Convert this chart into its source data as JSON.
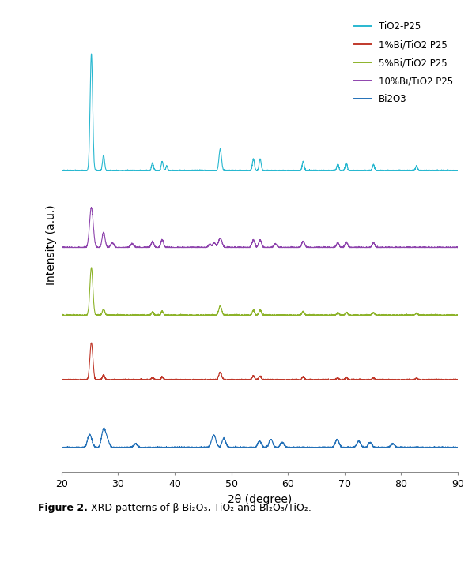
{
  "xlabel": "2θ (degree)",
  "ylabel": "Intensity (a.u.)",
  "xlim": [
    20,
    90
  ],
  "ylim": [
    -0.3,
    14.5
  ],
  "xticks": [
    20,
    30,
    40,
    50,
    60,
    70,
    80,
    90
  ],
  "background_color": "#ffffff",
  "legend_labels": [
    "TiO2-P25",
    "1%Bi/TiO2 P25",
    "5%Bi/TiO2 P25",
    "10%Bi/TiO2 P25",
    "Bi2O3"
  ],
  "colors": {
    "TiO2_P25": "#29b8d0",
    "Bi1": "#c0392b",
    "Bi5": "#8db32a",
    "Bi10": "#8e44ad",
    "Bi2O3": "#2471b8"
  },
  "offsets": {
    "TiO2_P25": 9.5,
    "Bi10": 7.0,
    "Bi5": 4.8,
    "Bi1": 2.7,
    "Bi2O3": 0.5
  },
  "tio2_peaks": [
    25.3,
    27.45,
    36.1,
    37.8,
    38.6,
    48.05,
    53.9,
    55.1,
    62.7,
    68.8,
    70.3,
    75.1,
    82.7
  ],
  "tio2_widths": [
    0.22,
    0.18,
    0.18,
    0.18,
    0.15,
    0.22,
    0.18,
    0.18,
    0.18,
    0.18,
    0.18,
    0.18,
    0.18
  ],
  "tio2_heights": [
    3.8,
    0.5,
    0.25,
    0.3,
    0.15,
    0.7,
    0.38,
    0.38,
    0.3,
    0.2,
    0.25,
    0.2,
    0.15
  ],
  "bi1_peaks": [
    25.3,
    27.45,
    36.1,
    37.8,
    48.05,
    53.9,
    55.1,
    62.7,
    68.8,
    70.3,
    75.1,
    82.7
  ],
  "bi1_widths": [
    0.26,
    0.21,
    0.19,
    0.19,
    0.26,
    0.21,
    0.21,
    0.21,
    0.21,
    0.21,
    0.21,
    0.21
  ],
  "bi1_heights": [
    1.2,
    0.16,
    0.08,
    0.1,
    0.24,
    0.13,
    0.13,
    0.1,
    0.06,
    0.08,
    0.06,
    0.05
  ],
  "bi5_peaks": [
    25.3,
    27.45,
    36.1,
    37.8,
    48.05,
    53.9,
    55.1,
    62.7,
    68.8,
    70.3,
    75.1,
    82.7
  ],
  "bi5_widths": [
    0.26,
    0.21,
    0.19,
    0.19,
    0.26,
    0.21,
    0.21,
    0.21,
    0.21,
    0.21,
    0.21,
    0.21
  ],
  "bi5_heights": [
    1.55,
    0.2,
    0.1,
    0.13,
    0.3,
    0.16,
    0.16,
    0.12,
    0.08,
    0.1,
    0.08,
    0.06
  ],
  "bi10_peaks": [
    25.3,
    27.45,
    29.0,
    32.5,
    36.1,
    37.8,
    46.2,
    47.0,
    48.05,
    53.9,
    55.1,
    57.8,
    62.7,
    68.8,
    70.3,
    75.1
  ],
  "bi10_widths": [
    0.32,
    0.26,
    0.28,
    0.28,
    0.23,
    0.23,
    0.28,
    0.23,
    0.32,
    0.26,
    0.26,
    0.26,
    0.26,
    0.23,
    0.23,
    0.23
  ],
  "bi10_heights": [
    1.3,
    0.5,
    0.16,
    0.12,
    0.2,
    0.26,
    0.1,
    0.16,
    0.3,
    0.24,
    0.24,
    0.12,
    0.2,
    0.16,
    0.18,
    0.16
  ],
  "bi2o3_peaks": [
    25.0,
    27.4,
    28.0,
    33.1,
    46.9,
    48.7,
    55.0,
    57.0,
    59.0,
    68.7,
    72.5,
    74.5,
    78.5
  ],
  "bi2o3_widths": [
    0.38,
    0.33,
    0.38,
    0.33,
    0.38,
    0.33,
    0.33,
    0.33,
    0.33,
    0.33,
    0.33,
    0.33,
    0.33
  ],
  "bi2o3_heights": [
    0.42,
    0.52,
    0.3,
    0.12,
    0.4,
    0.3,
    0.2,
    0.26,
    0.16,
    0.26,
    0.2,
    0.16,
    0.12
  ],
  "noise": 0.012,
  "linewidth": 0.8,
  "figsize": [
    5.97,
    7.12
  ],
  "dpi": 100,
  "font_size_axis": 10,
  "font_size_tick": 9,
  "font_size_legend": 8.5,
  "font_size_caption": 9
}
